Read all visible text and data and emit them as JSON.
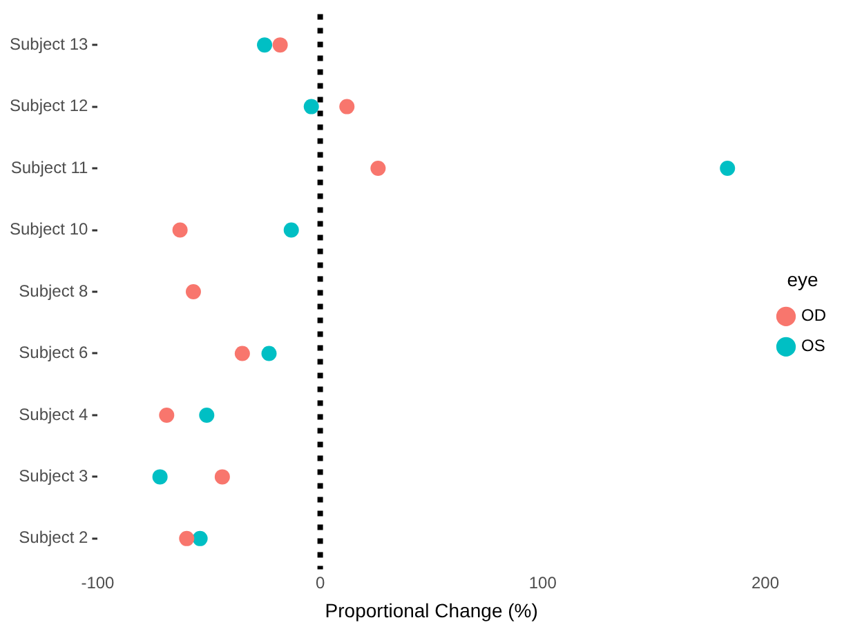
{
  "chart_data": {
    "type": "scatter",
    "orientation": "horizontal",
    "xlabel": "Proportional Change (%)",
    "legend_title": "eye",
    "legend": "right",
    "categories": [
      "Subject 13",
      "Subject 12",
      "Subject 11",
      "Subject 10",
      "Subject 8",
      "Subject 6",
      "Subject 4",
      "Subject 3",
      "Subject 2"
    ],
    "series": [
      {
        "name": "OD",
        "color": "#f8766d",
        "values": [
          -18,
          12,
          26,
          -63,
          -57,
          -35,
          -69,
          -44,
          -60
        ]
      },
      {
        "name": "OS",
        "color": "#00bfc4",
        "values": [
          -25,
          -4,
          183,
          -13,
          null,
          -23,
          -51,
          -72,
          -54
        ]
      }
    ],
    "xlim": [
      -100,
      200
    ],
    "xticks": [
      -100,
      0,
      100,
      200
    ],
    "grid": false,
    "marker": "circle",
    "ref_lines": [
      {
        "axis": "x",
        "value": 0,
        "color": "#000000",
        "line_style": "dotted"
      }
    ]
  }
}
